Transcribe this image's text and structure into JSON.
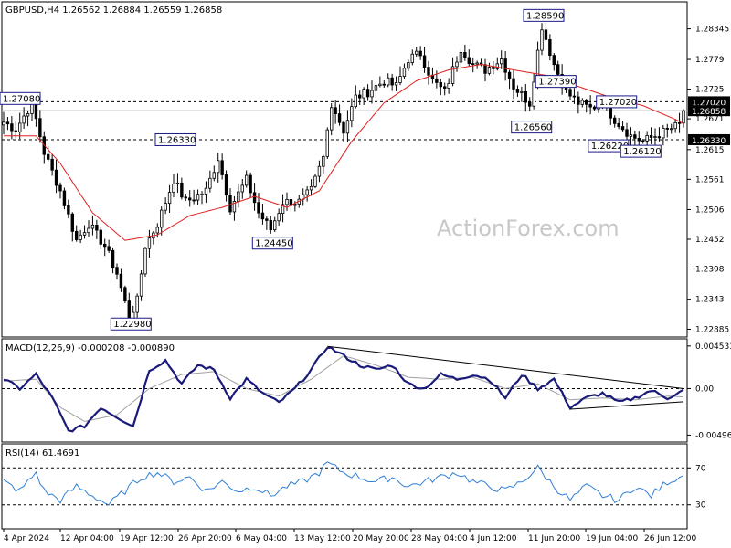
{
  "chart_data": [
    {
      "type": "candlestick",
      "symbol_header": "GBPUSD,H4  1.26562 1.26884 1.26559 1.26858",
      "watermark": "ActionForex.com",
      "yticks": [
        1.22885,
        1.2343,
        1.2398,
        1.2452,
        1.2506,
        1.2561,
        1.2615,
        1.2671,
        1.2725,
        1.2779,
        1.28345
      ],
      "ylim": [
        1.2276,
        1.2882
      ],
      "xticks": [
        "4 Apr 2024",
        "12 Apr 04:00",
        "19 Apr 12:00",
        "26 Apr 20:00",
        "6 May 04:00",
        "13 May 12:00",
        "20 May 20:00",
        "28 May 04:00",
        "4 Jun 12:00",
        "11 Jun 20:00",
        "19 Jun 04:00",
        "26 Jun 12:00"
      ],
      "price_labels": [
        {
          "text": "1.27020",
          "value": 1.2702,
          "color": "#ffffff"
        },
        {
          "text": "1.26858",
          "value": 1.26858,
          "color": "#ffffff"
        },
        {
          "text": "1.26330",
          "value": 1.2633,
          "color": "#ffffff"
        }
      ],
      "horizontal_levels": [
        1.2702,
        1.2633
      ],
      "current_price": 1.26858,
      "annotations": [
        {
          "text": "1.27080",
          "x": 0,
          "y": 1.2708
        },
        {
          "text": "1.26330",
          "x": 42,
          "y": 1.2633
        },
        {
          "text": "1.24450",
          "x": 66,
          "y": 1.2445
        },
        {
          "text": "1.22980",
          "x": 31,
          "y": 1.2298
        },
        {
          "text": "1.28590",
          "x": 133,
          "y": 1.2859
        },
        {
          "text": "1.27390",
          "x": 136,
          "y": 1.2739
        },
        {
          "text": "1.26560",
          "x": 130,
          "y": 1.2656
        },
        {
          "text": "1.27020",
          "x": 151,
          "y": 1.2702
        },
        {
          "text": "1.26220",
          "x": 149,
          "y": 1.2622
        },
        {
          "text": "1.26120",
          "x": 157,
          "y": 1.2612
        }
      ],
      "close_anchors": [
        [
          0,
          1.2665
        ],
        [
          3,
          1.2652
        ],
        [
          7,
          1.27
        ],
        [
          10,
          1.261
        ],
        [
          14,
          1.254
        ],
        [
          18,
          1.245
        ],
        [
          21,
          1.248
        ],
        [
          25,
          1.244
        ],
        [
          28,
          1.239
        ],
        [
          31,
          1.231
        ],
        [
          33,
          1.234
        ],
        [
          35,
          1.244
        ],
        [
          38,
          1.248
        ],
        [
          42,
          1.256
        ],
        [
          45,
          1.252
        ],
        [
          50,
          1.254
        ],
        [
          53,
          1.26
        ],
        [
          56,
          1.251
        ],
        [
          60,
          1.256
        ],
        [
          63,
          1.25
        ],
        [
          66,
          1.247
        ],
        [
          69,
          1.252
        ],
        [
          73,
          1.252
        ],
        [
          76,
          1.254
        ],
        [
          79,
          1.26
        ],
        [
          81,
          1.27
        ],
        [
          84,
          1.265
        ],
        [
          87,
          1.271
        ],
        [
          90,
          1.272
        ],
        [
          94,
          1.274
        ],
        [
          97,
          1.273
        ],
        [
          100,
          1.278
        ],
        [
          103,
          1.279
        ],
        [
          106,
          1.274
        ],
        [
          109,
          1.272
        ],
        [
          113,
          1.28
        ],
        [
          116,
          1.277
        ],
        [
          119,
          1.276
        ],
        [
          123,
          1.278
        ],
        [
          126,
          1.273
        ],
        [
          130,
          1.27
        ],
        [
          133,
          1.284
        ],
        [
          136,
          1.277
        ],
        [
          139,
          1.272
        ],
        [
          142,
          1.27
        ],
        [
          145,
          1.269
        ],
        [
          148,
          1.27
        ],
        [
          151,
          1.267
        ],
        [
          155,
          1.264
        ],
        [
          158,
          1.263
        ],
        [
          161,
          1.264
        ],
        [
          164,
          1.265
        ],
        [
          167,
          1.266
        ],
        [
          168,
          1.26858
        ]
      ],
      "ma_anchors": [
        [
          0,
          1.264
        ],
        [
          8,
          1.264
        ],
        [
          14,
          1.259
        ],
        [
          22,
          1.25
        ],
        [
          30,
          1.245
        ],
        [
          38,
          1.246
        ],
        [
          46,
          1.2495
        ],
        [
          54,
          1.251
        ],
        [
          62,
          1.253
        ],
        [
          70,
          1.251
        ],
        [
          78,
          1.254
        ],
        [
          86,
          1.263
        ],
        [
          94,
          1.27
        ],
        [
          102,
          1.274
        ],
        [
          110,
          1.276
        ],
        [
          118,
          1.277
        ],
        [
          126,
          1.276
        ],
        [
          134,
          1.275
        ],
        [
          142,
          1.273
        ],
        [
          150,
          1.271
        ],
        [
          158,
          1.2695
        ],
        [
          166,
          1.267
        ],
        [
          168,
          1.2662
        ]
      ]
    },
    {
      "type": "line",
      "title": "MACD(12,26,9) -0.000208 -0.000890",
      "yticks": [
        0.004533,
        0.0,
        -0.00496
      ],
      "ytick_labels": [
        "0.004533",
        "0.00",
        "-0.00496"
      ],
      "ylim": [
        -0.0056,
        0.0052
      ],
      "reference_level": 0.0,
      "macd_anchors": [
        [
          0,
          0.001
        ],
        [
          4,
          0.0
        ],
        [
          8,
          0.0015
        ],
        [
          12,
          -0.001
        ],
        [
          16,
          -0.0045
        ],
        [
          20,
          -0.004
        ],
        [
          24,
          -0.002
        ],
        [
          28,
          -0.003
        ],
        [
          32,
          -0.004
        ],
        [
          36,
          0.002
        ],
        [
          40,
          0.003
        ],
        [
          44,
          0.0005
        ],
        [
          48,
          0.0025
        ],
        [
          52,
          0.002
        ],
        [
          56,
          -0.001
        ],
        [
          60,
          0.001
        ],
        [
          64,
          -0.0005
        ],
        [
          68,
          -0.0015
        ],
        [
          72,
          0.0
        ],
        [
          76,
          0.002
        ],
        [
          80,
          0.0045
        ],
        [
          84,
          0.0035
        ],
        [
          88,
          0.0025
        ],
        [
          92,
          0.002
        ],
        [
          96,
          0.0025
        ],
        [
          100,
          0.0005
        ],
        [
          104,
          0.0
        ],
        [
          108,
          0.0015
        ],
        [
          112,
          0.001
        ],
        [
          116,
          0.0015
        ],
        [
          120,
          0.001
        ],
        [
          124,
          -0.001
        ],
        [
          128,
          0.0015
        ],
        [
          132,
          0.0
        ],
        [
          136,
          0.001
        ],
        [
          140,
          -0.002
        ],
        [
          144,
          -0.001
        ],
        [
          148,
          -0.0005
        ],
        [
          152,
          -0.0015
        ],
        [
          156,
          -0.001
        ],
        [
          160,
          -0.0002
        ],
        [
          164,
          -0.001
        ],
        [
          168,
          -0.000208
        ]
      ],
      "signal_anchors": [
        [
          0,
          0.0008
        ],
        [
          8,
          0.001
        ],
        [
          14,
          -0.002
        ],
        [
          20,
          -0.0035
        ],
        [
          28,
          -0.0028
        ],
        [
          36,
          0.0
        ],
        [
          44,
          0.0015
        ],
        [
          52,
          0.0018
        ],
        [
          60,
          0.0
        ],
        [
          68,
          -0.0008
        ],
        [
          76,
          0.001
        ],
        [
          84,
          0.0035
        ],
        [
          92,
          0.0025
        ],
        [
          100,
          0.0012
        ],
        [
          108,
          0.001
        ],
        [
          116,
          0.0012
        ],
        [
          124,
          0.0
        ],
        [
          132,
          0.0005
        ],
        [
          140,
          -0.0012
        ],
        [
          148,
          -0.001
        ],
        [
          156,
          -0.0012
        ],
        [
          164,
          -0.0008
        ],
        [
          168,
          -0.00089
        ]
      ],
      "trendlines": [
        {
          "from": [
            80,
            0.0045
          ],
          "to": [
            168,
            0.0
          ]
        },
        {
          "from": [
            140,
            -0.0022
          ],
          "to": [
            168,
            -0.0014
          ]
        }
      ]
    },
    {
      "type": "line",
      "title": "RSI(14) 61.4691",
      "yticks": [
        70,
        30
      ],
      "ylim": [
        5,
        95
      ],
      "reference_levels": [
        70,
        30
      ],
      "rsi_anchors": [
        [
          0,
          55
        ],
        [
          4,
          45
        ],
        [
          8,
          65
        ],
        [
          10,
          45
        ],
        [
          14,
          35
        ],
        [
          18,
          50
        ],
        [
          22,
          40
        ],
        [
          26,
          30
        ],
        [
          30,
          45
        ],
        [
          34,
          60
        ],
        [
          38,
          65
        ],
        [
          42,
          55
        ],
        [
          46,
          60
        ],
        [
          50,
          45
        ],
        [
          54,
          55
        ],
        [
          58,
          45
        ],
        [
          62,
          50
        ],
        [
          66,
          40
        ],
        [
          70,
          50
        ],
        [
          74,
          55
        ],
        [
          78,
          65
        ],
        [
          80,
          75
        ],
        [
          84,
          65
        ],
        [
          88,
          60
        ],
        [
          92,
          55
        ],
        [
          96,
          60
        ],
        [
          100,
          50
        ],
        [
          104,
          55
        ],
        [
          108,
          60
        ],
        [
          112,
          65
        ],
        [
          116,
          55
        ],
        [
          120,
          50
        ],
        [
          124,
          45
        ],
        [
          128,
          55
        ],
        [
          132,
          70
        ],
        [
          136,
          50
        ],
        [
          140,
          35
        ],
        [
          144,
          50
        ],
        [
          148,
          40
        ],
        [
          152,
          35
        ],
        [
          156,
          50
        ],
        [
          160,
          40
        ],
        [
          164,
          55
        ],
        [
          168,
          61.4691
        ]
      ]
    }
  ]
}
